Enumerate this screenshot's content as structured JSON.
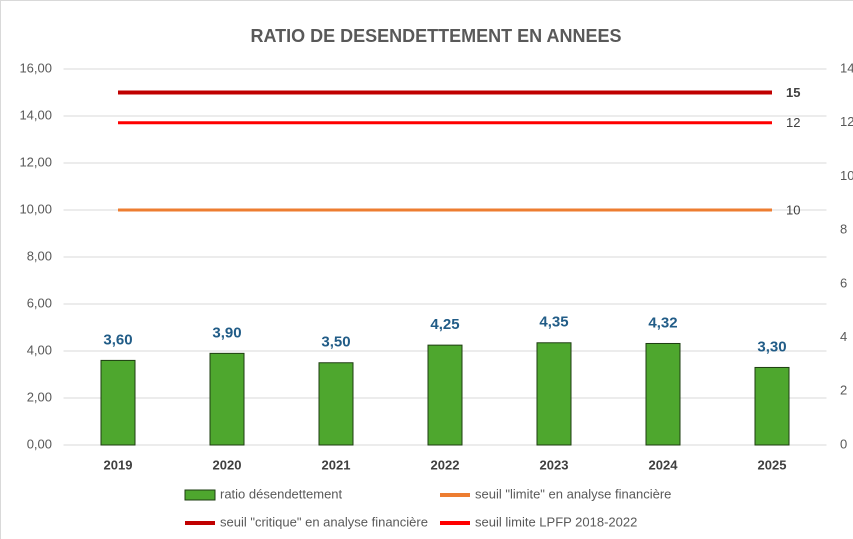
{
  "chart_data": {
    "type": "bar",
    "title": "RATIO DE DESENDETTEMENT EN ANNEES",
    "categories": [
      "2019",
      "2020",
      "2021",
      "2022",
      "2023",
      "2024",
      "2025"
    ],
    "series": [
      {
        "name": "ratio désendettement",
        "type": "bar",
        "color": "#4ea72e",
        "values": [
          3.6,
          3.9,
          3.5,
          4.25,
          4.35,
          4.32,
          3.3
        ],
        "value_labels": [
          "3,60",
          "3,90",
          "3,50",
          "4,25",
          "4,35",
          "4,32",
          "3,30"
        ]
      },
      {
        "name": "seuil \"limite\" en analyse financière",
        "type": "line",
        "color": "#ed7d31",
        "values": [
          10,
          10,
          10,
          10,
          10,
          10,
          10
        ]
      },
      {
        "name": "seuil \"critique\" en analyse financière",
        "type": "line",
        "color": "#c00000",
        "values": [
          15,
          15,
          15,
          15,
          15,
          15,
          15
        ]
      },
      {
        "name": "seuil limite LPFP 2018-2022",
        "type": "line",
        "color": "#ff0000",
        "axis": "y2",
        "values": [
          12,
          12,
          12,
          12,
          12,
          12,
          12
        ]
      }
    ],
    "ylim": [
      0,
      16
    ],
    "yticks": [
      {
        "value": 0,
        "label": "0,00"
      },
      {
        "value": 2,
        "label": "2,00"
      },
      {
        "value": 4,
        "label": "4,00"
      },
      {
        "value": 6,
        "label": "6,00"
      },
      {
        "value": 8,
        "label": "8,00"
      },
      {
        "value": 10,
        "label": "10,00"
      },
      {
        "value": 12,
        "label": "12,00"
      },
      {
        "value": 14,
        "label": "14,00"
      },
      {
        "value": 16,
        "label": "16,00"
      }
    ],
    "y2lim": [
      0,
      14
    ],
    "y2ticks": [
      0,
      2,
      4,
      6,
      8,
      10,
      12,
      14
    ],
    "grid": true,
    "legend": "bottom"
  }
}
